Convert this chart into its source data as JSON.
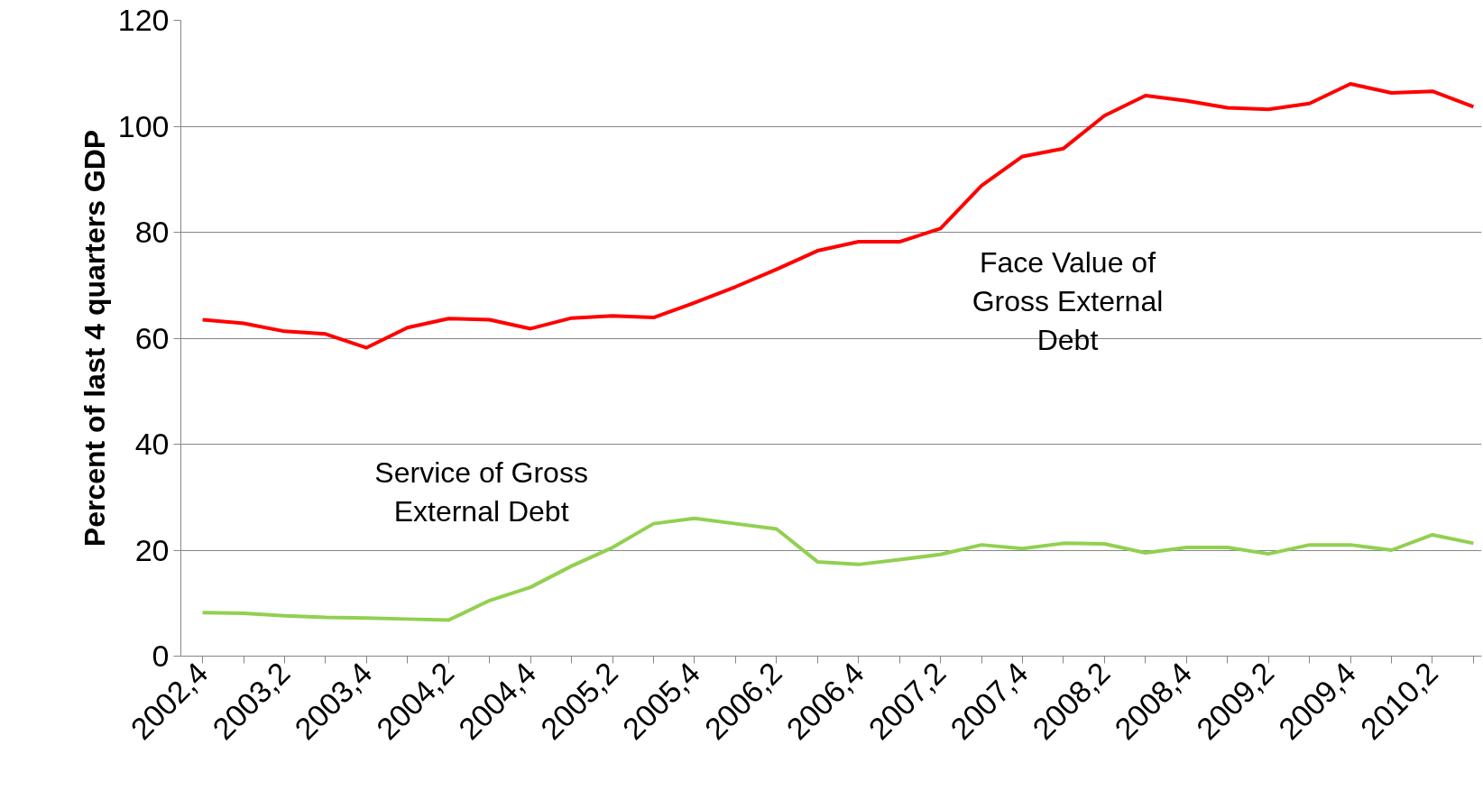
{
  "chart_data": {
    "type": "line",
    "ylabel": "Percent of last 4 quarters GDP",
    "categories": [
      "2002,4",
      null,
      "2003,2",
      null,
      "2003,4",
      null,
      "2004,2",
      null,
      "2004,4",
      null,
      "2005,2",
      null,
      "2005,4",
      null,
      "2006,2",
      null,
      "2006,4",
      null,
      "2007,2",
      null,
      "2007,4",
      null,
      "2008,2",
      null,
      "2008,4",
      null,
      "2009,2",
      null,
      "2009,4",
      null,
      "2010,2",
      null
    ],
    "series": [
      {
        "color": "#ff0000",
        "values": [
          63.5,
          62.8,
          61.3,
          60.8,
          58.2,
          62,
          63.7,
          63.5,
          61.8,
          63.8,
          64.2,
          63.9,
          66.7,
          69.7,
          73,
          76.5,
          78.2,
          78.2,
          80.7,
          88.8,
          94.3,
          95.8,
          102,
          105.8,
          104.8,
          103.5,
          103.2,
          104.3,
          108,
          106.3,
          106.6,
          103.7
        ]
      },
      {
        "color": "#92d050",
        "values": [
          8.2,
          8.1,
          7.6,
          7.3,
          7.2,
          7.0,
          6.8,
          10.5,
          13,
          17,
          20.5,
          25,
          26,
          25,
          24,
          17.8,
          17.3,
          18.2,
          19.2,
          21,
          20.3,
          21.3,
          21.2,
          19.5,
          20.5,
          20.5,
          19.3,
          21,
          21,
          20,
          22.9,
          21.3
        ]
      }
    ],
    "ylim": [
      0,
      120
    ],
    "yticks": [
      0,
      20,
      40,
      60,
      80,
      100,
      120
    ],
    "grid": "y",
    "annotations": [
      "Face Value of\nGross External\nDebt",
      "Service of Gross\nExternal Debt"
    ]
  }
}
